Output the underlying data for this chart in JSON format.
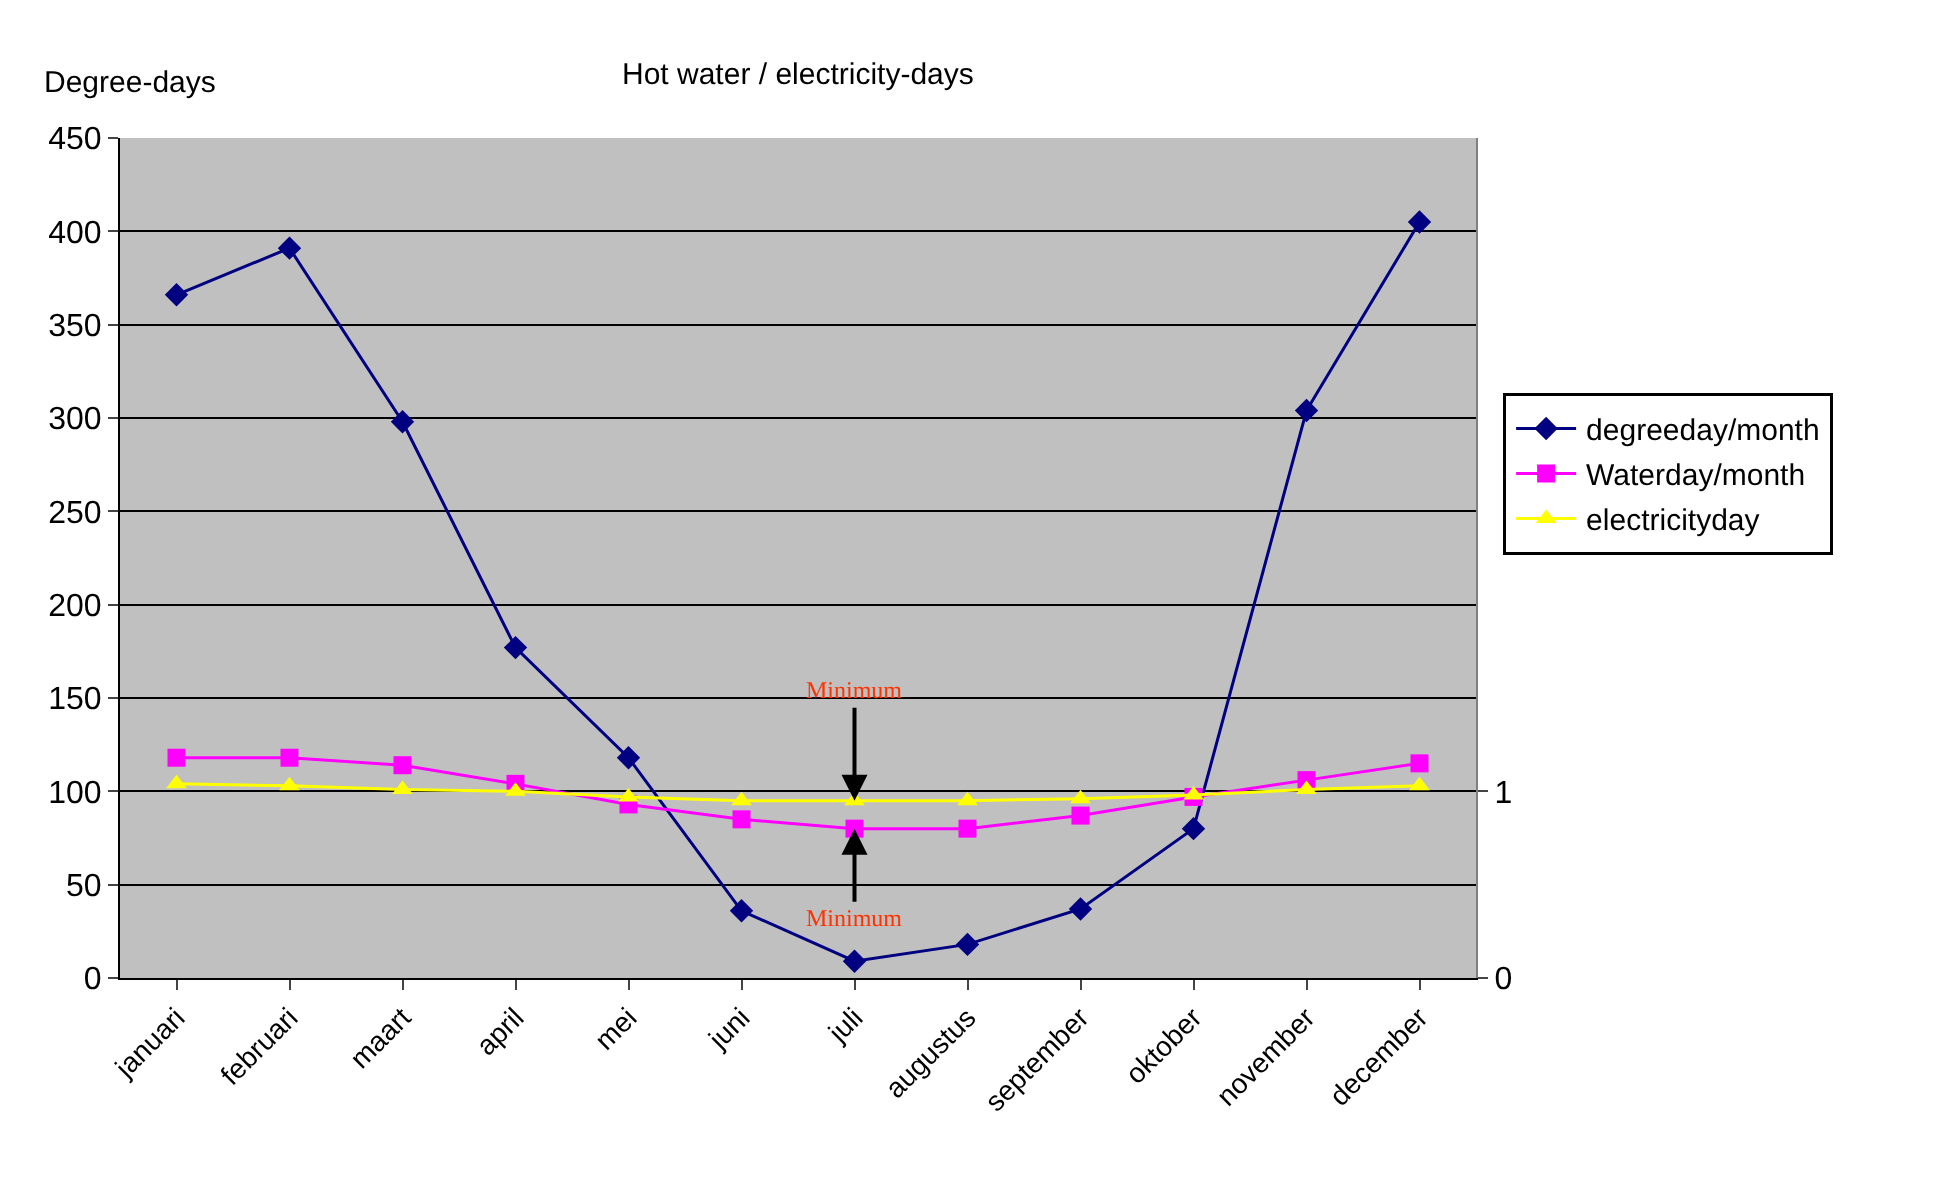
{
  "chart_data": {
    "type": "line",
    "title": "Hot water / electricity-days",
    "ylabel": "Degree-days",
    "categories": [
      "januari",
      "februari",
      "maart",
      "april",
      "mei",
      "juni",
      "juli",
      "augustus",
      "september",
      "oktober",
      "november",
      "december"
    ],
    "series": [
      {
        "name": "degreeday/month",
        "color": "#000080",
        "marker": "diamond",
        "values": [
          366,
          391,
          298,
          177,
          118,
          36,
          9,
          18,
          37,
          80,
          304,
          405
        ]
      },
      {
        "name": "Waterday/month",
        "color": "#ff00ff",
        "marker": "square",
        "values": [
          118,
          118,
          114,
          104,
          93,
          85,
          80,
          80,
          87,
          97,
          106,
          115
        ]
      },
      {
        "name": "electricityday",
        "color": "#ffff00",
        "marker": "triangle",
        "axis": "y2",
        "values": [
          1.04,
          1.03,
          1.01,
          1.0,
          0.97,
          0.95,
          0.95,
          0.95,
          0.96,
          0.98,
          1.01,
          1.03
        ]
      }
    ],
    "ylim": [
      0,
      450
    ],
    "yticks": [
      0,
      50,
      100,
      150,
      200,
      250,
      300,
      350,
      400,
      450
    ],
    "y2lim": [
      0,
      4.5
    ],
    "y2ticks": [
      0,
      1
    ],
    "grid": "y",
    "legend": "right",
    "line_style": "solid",
    "annotations": [
      {
        "text": "Minimum",
        "x": "juli",
        "y": 95
      },
      {
        "text": "Minimum",
        "x": "juli",
        "y": 80
      }
    ]
  }
}
